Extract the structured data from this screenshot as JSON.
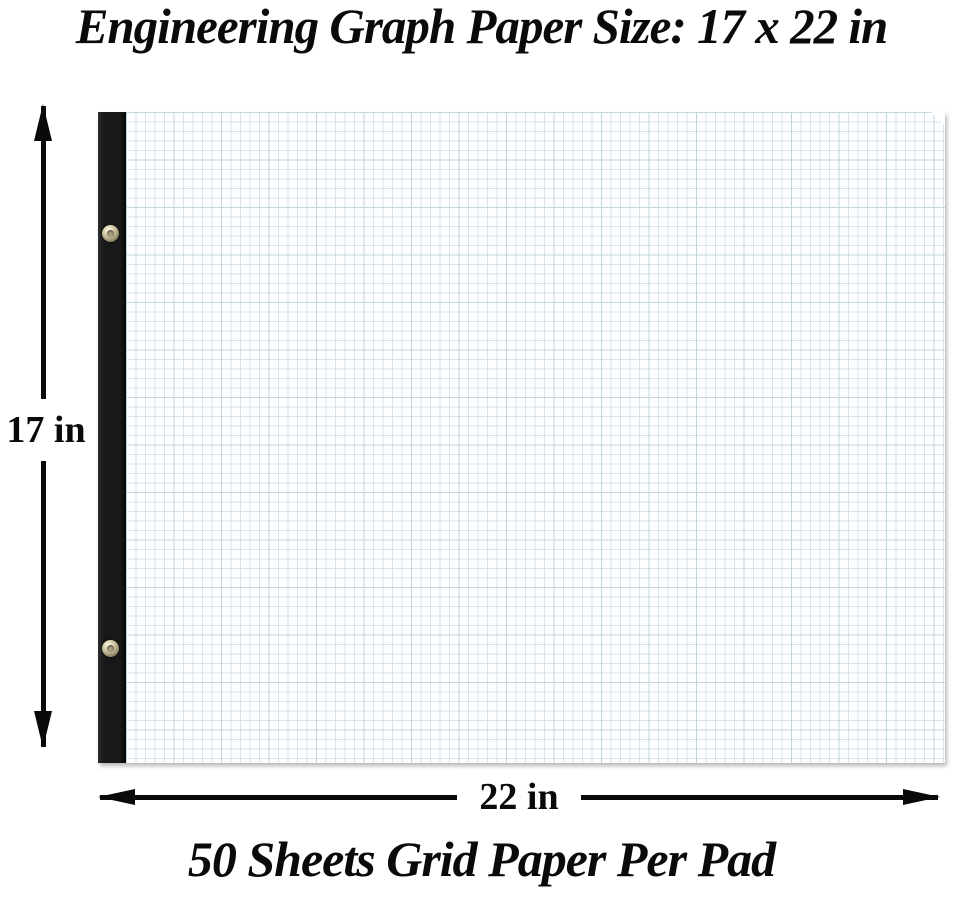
{
  "title": "Engineering Graph Paper Size: 17 x 22 in",
  "footer": "50 Sheets Grid Paper Per Pad",
  "dimensions": {
    "height_label": "17 in",
    "width_label": "22 in"
  },
  "colors": {
    "ink": "#0a0a0a",
    "binding": "#181818",
    "paper": "#fcfeff",
    "grid-minor": "#d7e4ea",
    "grid-major": "#c2d6de",
    "grommet-brass": "#cdc4a3"
  }
}
